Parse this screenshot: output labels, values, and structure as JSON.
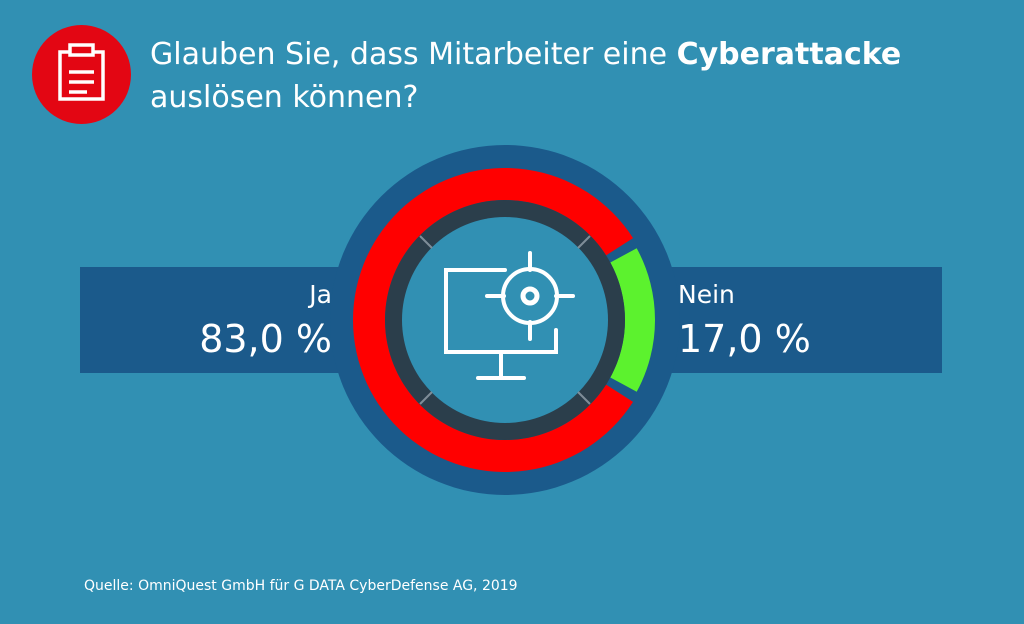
{
  "title": {
    "line1_pre": "Glauben Sie, dass Mitarbeiter eine ",
    "line1_bold": "Cyberattacke",
    "line2": "auslösen können?"
  },
  "chart_data": {
    "type": "pie",
    "title": "Glauben Sie, dass Mitarbeiter eine Cyberattacke auslösen können?",
    "categories": [
      "Ja",
      "Nein"
    ],
    "values": [
      83.0,
      17.0
    ],
    "value_labels": [
      "83,0 %",
      "17,0 %"
    ],
    "colors": [
      "#ff0000",
      "#5cf22e"
    ],
    "legend": "none"
  },
  "labels": {
    "yes_label": "Ja",
    "yes_value": "83,0 %",
    "no_label": "Nein",
    "no_value": "17,0 %"
  },
  "icons": {
    "header": "clipboard-icon",
    "center": "monitor-target-icon"
  },
  "source": "Quelle: OmniQuest GmbH für G DATA CyberDefense AG, 2019"
}
